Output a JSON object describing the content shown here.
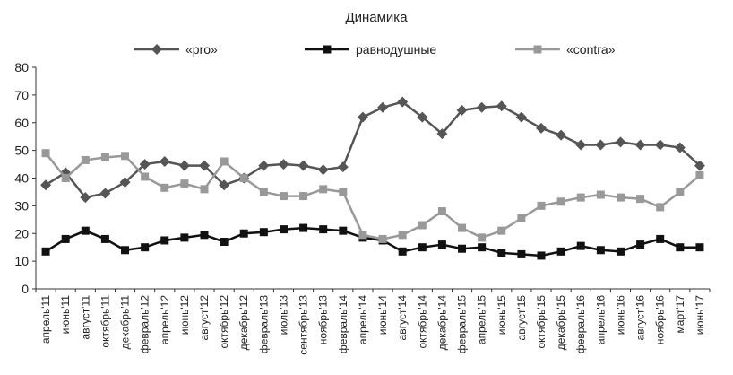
{
  "chart_data": {
    "type": "line",
    "title": "Динамика",
    "categories": [
      "апрель'11",
      "июнь'11",
      "август'11",
      "октябрь'11",
      "декабрь'11",
      "февраль'12",
      "апрель'12",
      "июнь'12",
      "август'12",
      "октябрь'12",
      "декабрь'12",
      "февраль'13",
      "июль'13",
      "сентябрь'13",
      "ноябрь'13",
      "февраль'14",
      "апрель'14",
      "июнь'14",
      "август'14",
      "октябрь'14",
      "декабрь'14",
      "февраль'15",
      "апрель'15",
      "июнь'15",
      "август'15",
      "октябрь'15",
      "декабрь'15",
      "февраль'16",
      "апрель'16",
      "июнь'16",
      "август'16",
      "ноябрь'16",
      "март'17",
      "июнь'17"
    ],
    "series": [
      {
        "name": "«pro»",
        "color": "#555555",
        "marker": "diamond",
        "values": [
          37.5,
          42,
          33,
          34.5,
          38.5,
          45,
          46,
          44.5,
          44.5,
          37.5,
          40,
          44.5,
          45,
          44.5,
          43,
          44,
          62,
          65.5,
          67.5,
          62,
          56,
          64.5,
          65.5,
          66,
          62,
          58,
          55.5,
          52,
          52,
          53,
          52,
          52,
          51,
          44.5
        ]
      },
      {
        "name": "равнодушные",
        "color": "#111111",
        "marker": "square",
        "values": [
          13.5,
          18,
          21,
          18,
          14,
          15,
          17.5,
          18.5,
          19.5,
          17,
          20,
          20.5,
          21.5,
          22,
          21.5,
          21,
          18.5,
          17.5,
          13.5,
          15,
          16,
          14.5,
          15,
          13,
          12.5,
          12,
          13.5,
          15.5,
          14,
          13.5,
          16,
          18,
          15,
          15
        ]
      },
      {
        "name": "«contra»",
        "color": "#999999",
        "marker": "square",
        "values": [
          49,
          40,
          46.5,
          47.5,
          48,
          40.5,
          36.5,
          38,
          36,
          46,
          40,
          35,
          33.5,
          33.5,
          36,
          35,
          19.5,
          18,
          19.5,
          23,
          28,
          22,
          18.5,
          21,
          25.5,
          30,
          31.5,
          33,
          34,
          33,
          32.5,
          29.5,
          35,
          41
        ]
      }
    ],
    "ylim": [
      0,
      80
    ],
    "yticks": [
      0,
      10,
      20,
      30,
      40,
      50,
      60,
      70,
      80
    ],
    "legend": "top"
  }
}
